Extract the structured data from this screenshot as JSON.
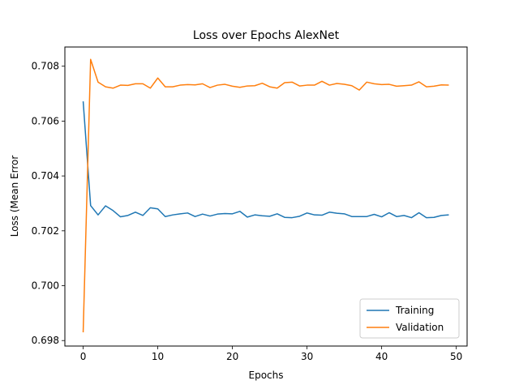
{
  "chart_data": {
    "type": "line",
    "title": "Loss over Epochs AlexNet",
    "xlabel": "Epochs",
    "ylabel": "Loss (Mean Error",
    "xlim": [
      -2.45,
      51.45
    ],
    "ylim": [
      0.6978,
      0.7087
    ],
    "xticks": [
      0,
      10,
      20,
      30,
      40,
      50
    ],
    "yticks": [
      0.698,
      0.7,
      0.702,
      0.704,
      0.706,
      0.708
    ],
    "ytick_labels": [
      "0.698",
      "0.700",
      "0.702",
      "0.704",
      "0.706",
      "0.708"
    ],
    "grid": false,
    "legend": "lower-right",
    "x": [
      0,
      1,
      2,
      3,
      4,
      5,
      6,
      7,
      8,
      9,
      10,
      11,
      12,
      13,
      14,
      15,
      16,
      17,
      18,
      19,
      20,
      21,
      22,
      23,
      24,
      25,
      26,
      27,
      28,
      29,
      30,
      31,
      32,
      33,
      34,
      35,
      36,
      37,
      38,
      39,
      40,
      41,
      42,
      43,
      44,
      45,
      46,
      47,
      48,
      49
    ],
    "series": [
      {
        "name": "Training",
        "color": "#1f77b4",
        "values": [
          0.70672,
          0.70292,
          0.70258,
          0.70291,
          0.70274,
          0.70251,
          0.70256,
          0.70268,
          0.70256,
          0.70284,
          0.7028,
          0.70252,
          0.70258,
          0.70262,
          0.70265,
          0.70252,
          0.70261,
          0.70254,
          0.70261,
          0.70263,
          0.70262,
          0.70271,
          0.7025,
          0.70258,
          0.70255,
          0.70253,
          0.70262,
          0.70249,
          0.70248,
          0.70253,
          0.70265,
          0.70258,
          0.70257,
          0.70268,
          0.70264,
          0.70262,
          0.70252,
          0.70252,
          0.70252,
          0.7026,
          0.70251,
          0.70266,
          0.70252,
          0.70256,
          0.70248,
          0.70266,
          0.70248,
          0.70249,
          0.70256,
          0.70258
        ]
      },
      {
        "name": "Validation",
        "color": "#ff7f0e",
        "values": [
          0.6983,
          0.70825,
          0.70742,
          0.70725,
          0.7072,
          0.70731,
          0.7073,
          0.70736,
          0.70736,
          0.7072,
          0.70757,
          0.70725,
          0.70725,
          0.70731,
          0.70733,
          0.70732,
          0.70736,
          0.70722,
          0.70731,
          0.70734,
          0.70727,
          0.70723,
          0.70728,
          0.70729,
          0.70738,
          0.70725,
          0.7072,
          0.7074,
          0.70742,
          0.70728,
          0.70731,
          0.70731,
          0.70745,
          0.70731,
          0.70737,
          0.70734,
          0.70729,
          0.70713,
          0.70742,
          0.70736,
          0.70733,
          0.70734,
          0.70727,
          0.70729,
          0.70731,
          0.70743,
          0.70725,
          0.70727,
          0.70732,
          0.70731
        ]
      }
    ]
  }
}
